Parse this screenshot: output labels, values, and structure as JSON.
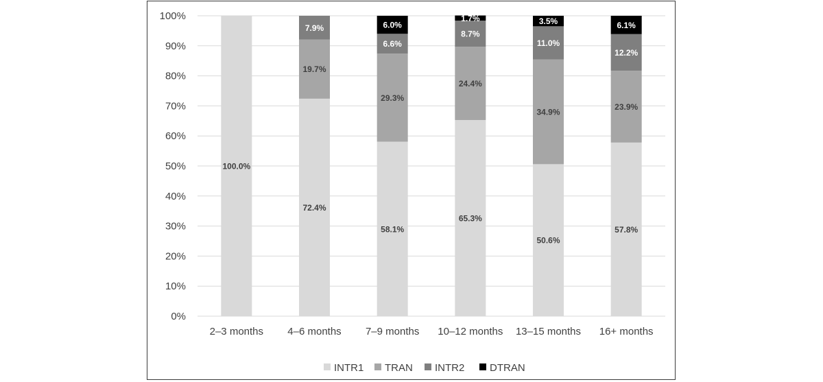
{
  "chart_data": {
    "type": "bar",
    "stacked": true,
    "normalized": true,
    "categories": [
      "2–3 months",
      "4–6 months",
      "7–9 months",
      "10–12 months",
      "13–15 months",
      "16+ months"
    ],
    "series": [
      {
        "name": "INTR1",
        "color": "#d9d9d9",
        "label_color": "#404040",
        "values": [
          100.0,
          72.4,
          58.1,
          65.3,
          50.6,
          57.8
        ],
        "labels": [
          "100.0%",
          "72.4%",
          "58.1%",
          "65.3%",
          "50.6%",
          "57.8%"
        ]
      },
      {
        "name": "TRAN",
        "color": "#a6a6a6",
        "label_color": "#404040",
        "values": [
          0,
          19.7,
          29.3,
          24.4,
          34.9,
          23.9
        ],
        "labels": [
          "",
          "19.7%",
          "29.3%",
          "24.4%",
          "34.9%",
          "23.9%"
        ]
      },
      {
        "name": "INTR2",
        "color": "#7f7f7f",
        "label_color": "#ffffff",
        "values": [
          0,
          7.9,
          6.6,
          8.7,
          11.0,
          12.2
        ],
        "labels": [
          "",
          "7.9%",
          "6.6%",
          "8.7%",
          "11.0%",
          "12.2%"
        ]
      },
      {
        "name": "DTRAN",
        "color": "#000000",
        "label_color": "#ffffff",
        "values": [
          0,
          0,
          6.0,
          1.7,
          3.5,
          6.1
        ],
        "labels": [
          "",
          "",
          "6.0%",
          "1.7%",
          "3.5%",
          "6.1%"
        ]
      }
    ],
    "y_ticks": [
      "0%",
      "10%",
      "20%",
      "30%",
      "40%",
      "50%",
      "60%",
      "70%",
      "80%",
      "90%",
      "100%"
    ],
    "ylim": [
      0,
      100
    ],
    "title": "",
    "xlabel": "",
    "ylabel": "",
    "grid": true,
    "legend": "bottom"
  }
}
